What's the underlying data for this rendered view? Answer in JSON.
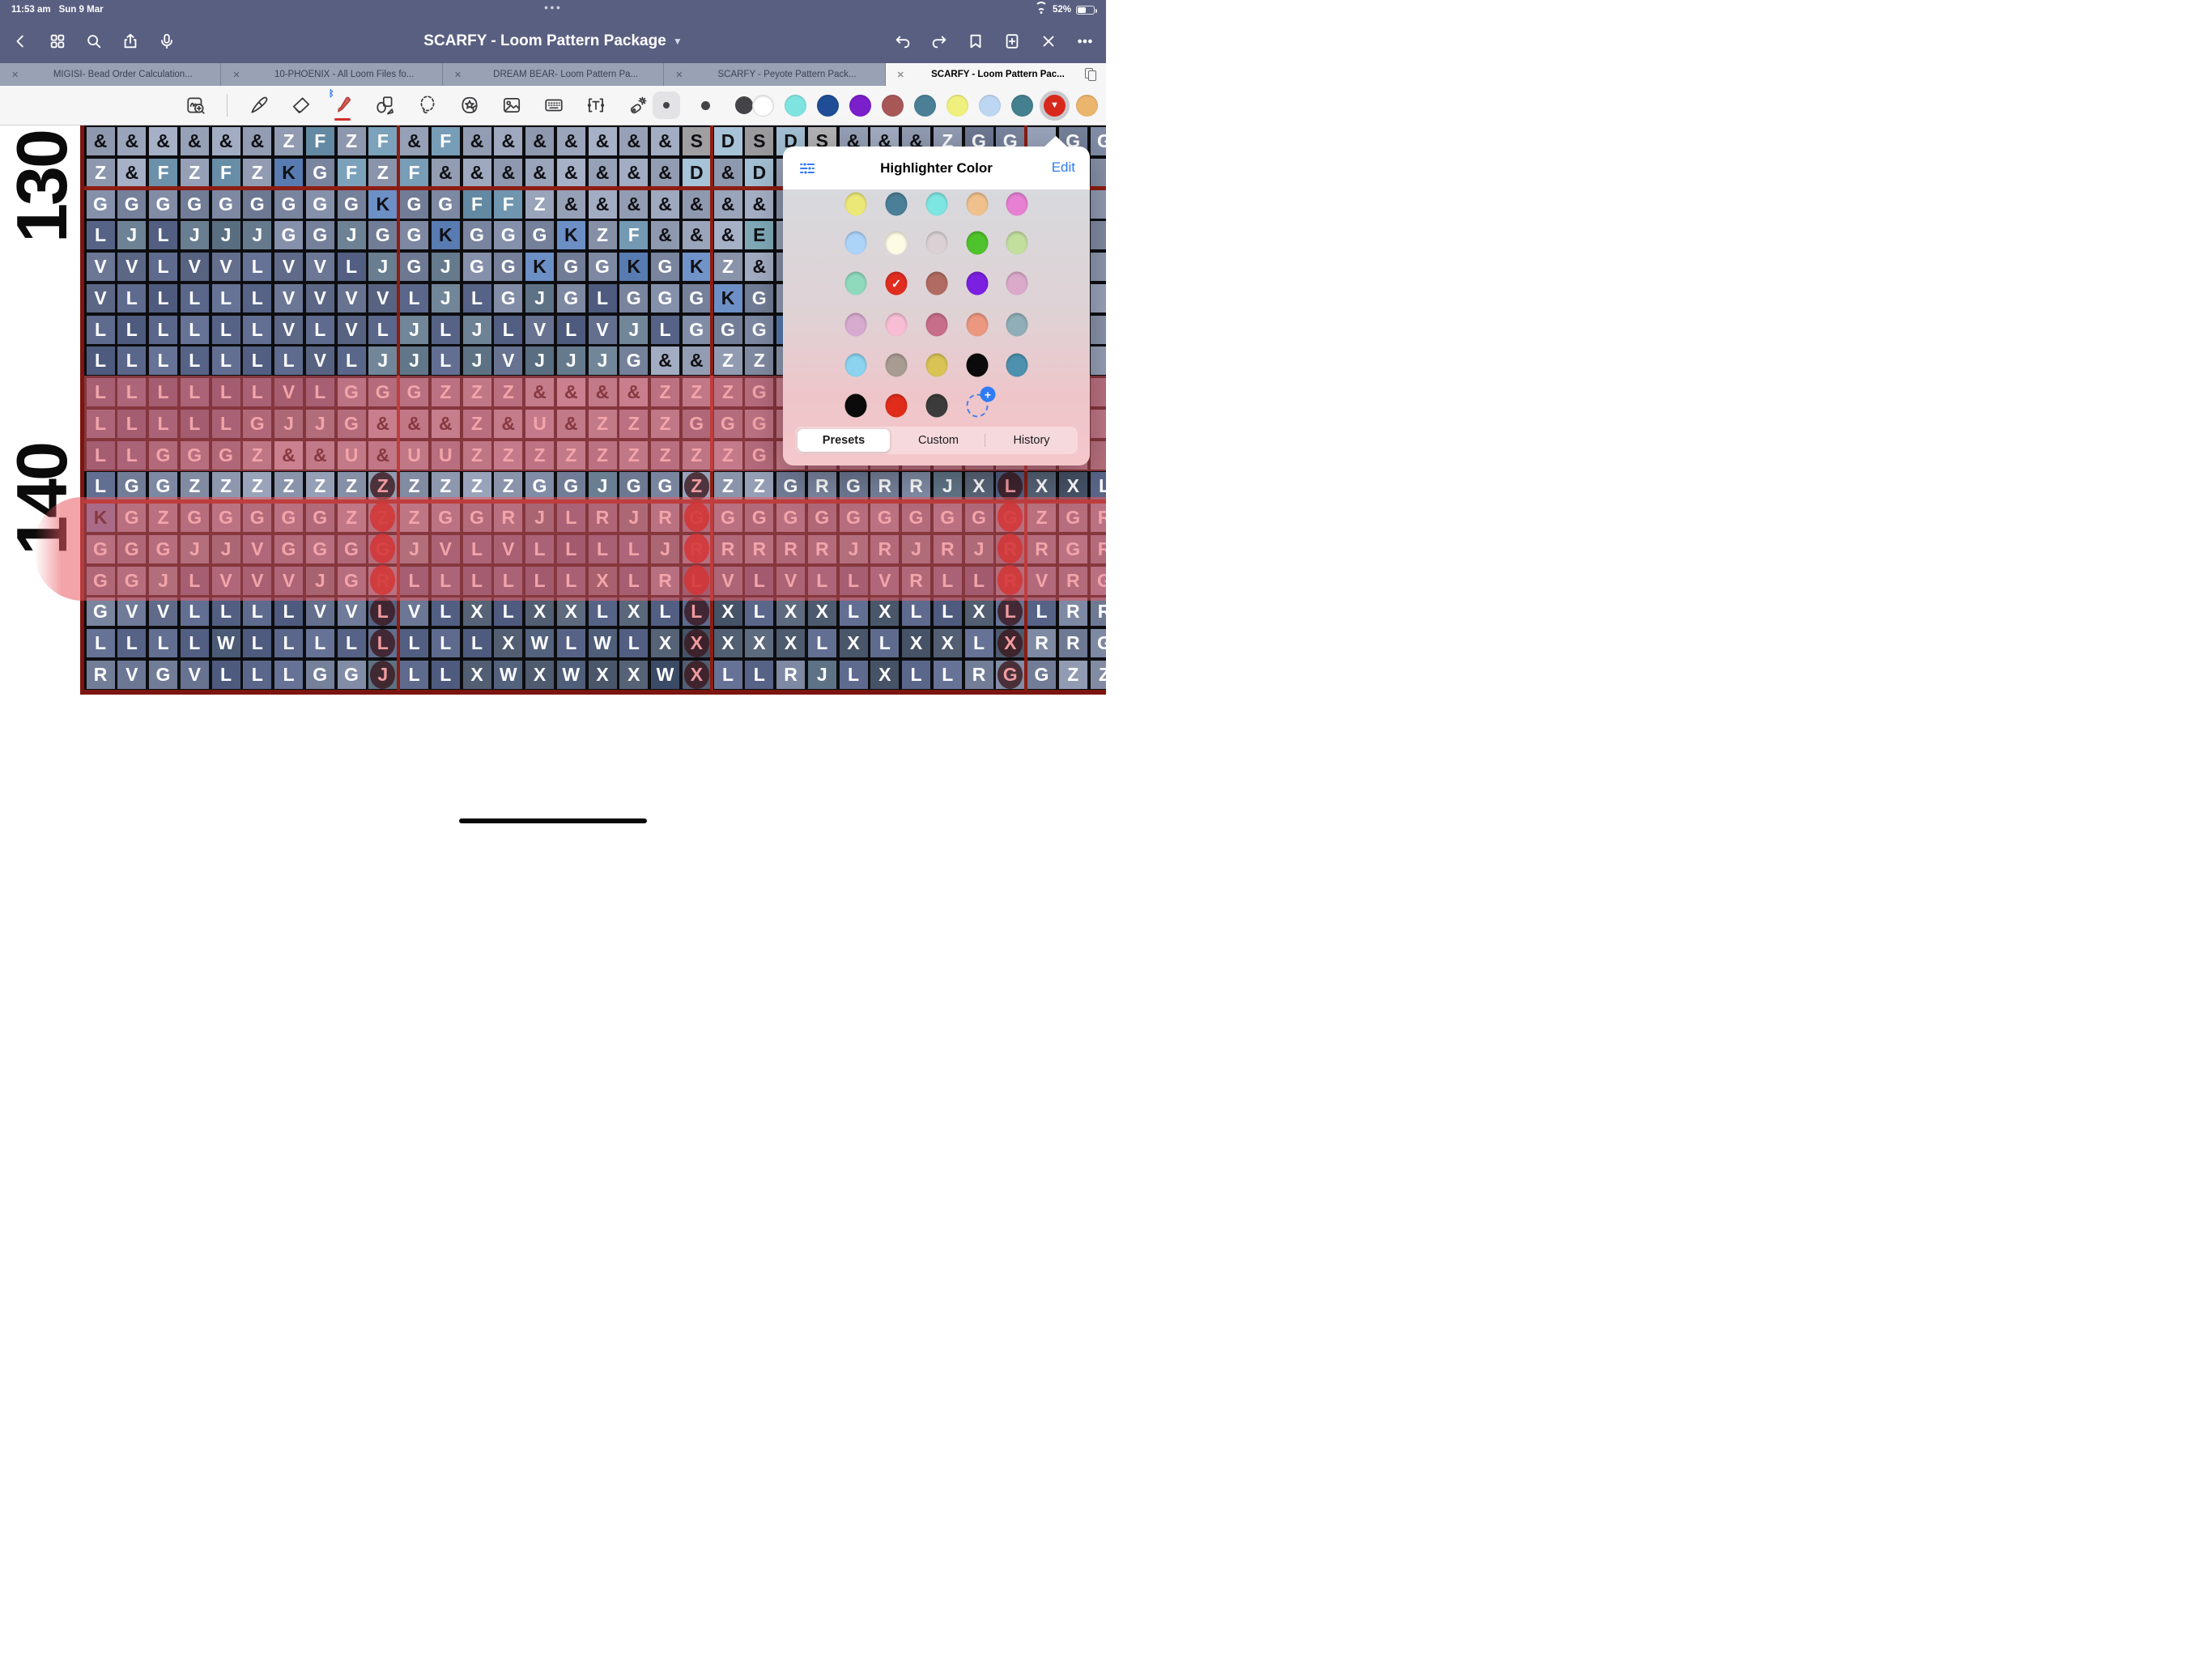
{
  "status": {
    "time": "11:53 am",
    "date": "Sun 9 Mar",
    "battery": "52%"
  },
  "nav": {
    "title": "SCARFY - Loom Pattern Package",
    "chevron": "⌄"
  },
  "tabs": [
    {
      "label": "MIGISI- Bead Order Calculation...",
      "active": false
    },
    {
      "label": "10-PHOENIX - All Loom Files fo...",
      "active": false
    },
    {
      "label": "DREAM BEAR- Loom Pattern Pa...",
      "active": false
    },
    {
      "label": "SCARFY -  Peyote Pattern Pack...",
      "active": false
    },
    {
      "label": "SCARFY - Loom Pattern Pac...",
      "active": true
    }
  ],
  "toolbar": {
    "tools": [
      "zoom-window",
      "pen",
      "eraser",
      "highlighter",
      "shapes",
      "lasso",
      "stickers",
      "image",
      "keyboard",
      "text",
      "laser-pointer"
    ],
    "selected_tool": "highlighter",
    "stroke_sizes": [
      "small",
      "medium",
      "large"
    ],
    "selected_size": "small",
    "colors": [
      "#FFFFFF",
      "#7FE3E0",
      "#1F4E96",
      "#7A1FC9",
      "#A85757",
      "#4A7F96",
      "#EFF07D",
      "#BDD7F2",
      "#45808F",
      "#D8281C",
      "#EBB56E"
    ],
    "selected_color_index": 9
  },
  "popup": {
    "title": "Highlighter Color",
    "edit_label": "Edit",
    "segments": [
      "Presets",
      "Custom",
      "History"
    ],
    "active_segment": "Presets",
    "selected_color": "#E02D20",
    "swatch_rows": [
      [
        "#ECE878",
        "#4B7E97",
        "#7EE6E2",
        "#F0C18D",
        "#E77FD3"
      ],
      [
        "#ACD4F8",
        "#FDFBE4",
        "#DBD1D4",
        "#4FC32C",
        "#C2DF9E"
      ],
      [
        "#8FD9BC",
        "#E02D20",
        "#B16B62",
        "#7B20E0",
        "#DBAACB"
      ],
      [
        "#D7ABD0",
        "#F6BDD4",
        "#C76E8B",
        "#EC9780",
        "#8FAEB8"
      ],
      [
        "#8BD3EE",
        "#A89B92",
        "#D9C355",
        "#0B0B0B",
        "#4E91AE"
      ],
      [
        "#0B0B0B",
        "#E02D1B",
        "#3B3B3B",
        "ADD"
      ]
    ],
    "selected_swatch": [
      2,
      1
    ]
  },
  "grid": {
    "row_labels": [
      "130",
      "140"
    ],
    "dot_columns": [
      10,
      20,
      30
    ],
    "dot_rows": {
      "12": "dark",
      "13": "red",
      "14": "red",
      "15": "red",
      "16": "dark",
      "17": "dark",
      "18": "dark"
    },
    "letter_styles": {
      "&": [
        "#9aa4ba",
        "#101014"
      ],
      "Z": [
        "#8d97ae",
        "#ffffff"
      ],
      "F": [
        "#6f95af",
        "#ffffff"
      ],
      "G": [
        "#79849e",
        "#ffffff"
      ],
      "L": [
        "#5a678a",
        "#ffffff"
      ],
      "J": [
        "#657a8c",
        "#ffffff"
      ],
      "V": [
        "#636f8d",
        "#ffffff"
      ],
      "K": [
        "#6487bd",
        "#101014"
      ],
      "S": [
        "#a7a7a9",
        "#101014"
      ],
      "D": [
        "#a3bfd3",
        "#101014"
      ],
      "E": [
        "#84aebc",
        "#101014"
      ],
      "U": [
        "#8d97ae",
        "#ffffff"
      ],
      "X": [
        "#525e72",
        "#ffffff"
      ],
      "W": [
        "#475671",
        "#ffffff"
      ],
      "R": [
        "#76819b",
        "#ffffff"
      ],
      "": [
        "#8e98af",
        "#8e98af"
      ]
    },
    "rows": [
      [
        "&",
        "&",
        "&",
        "&",
        "&",
        "&",
        "Z",
        "F",
        "Z",
        "F",
        "&",
        "F",
        "&",
        "&",
        "&",
        "&",
        "&",
        "&",
        "&",
        "S",
        "D",
        "S",
        "D",
        "S",
        "&",
        "&",
        "&",
        "Z",
        "G",
        "G",
        "",
        "G",
        "G"
      ],
      [
        "Z",
        "&",
        "F",
        "Z",
        "F",
        "Z",
        "K",
        "G",
        "F",
        "Z",
        "F",
        "&",
        "&",
        "&",
        "&",
        "&",
        "&",
        "&",
        "&",
        "D",
        "&",
        "D",
        "",
        "",
        "",
        "",
        "",
        "",
        "",
        "",
        "",
        "",
        ""
      ],
      [
        "G",
        "G",
        "G",
        "G",
        "G",
        "G",
        "G",
        "G",
        "G",
        "K",
        "G",
        "G",
        "F",
        "F",
        "Z",
        "&",
        "&",
        "&",
        "&",
        "&",
        "&",
        "&",
        "",
        "",
        "",
        "",
        "",
        "",
        "",
        "",
        "",
        "",
        ""
      ],
      [
        "L",
        "J",
        "L",
        "J",
        "J",
        "J",
        "G",
        "G",
        "J",
        "G",
        "G",
        "K",
        "G",
        "G",
        "G",
        "K",
        "Z",
        "F",
        "&",
        "&",
        "&",
        "E",
        "",
        "",
        "",
        "",
        "",
        "",
        "",
        "",
        "",
        "",
        ""
      ],
      [
        "V",
        "V",
        "L",
        "V",
        "V",
        "L",
        "V",
        "V",
        "L",
        "J",
        "G",
        "J",
        "G",
        "G",
        "K",
        "G",
        "G",
        "K",
        "G",
        "K",
        "Z",
        "&",
        "",
        "",
        "",
        "",
        "",
        "",
        "",
        "",
        "",
        "",
        ""
      ],
      [
        "V",
        "L",
        "L",
        "L",
        "L",
        "L",
        "V",
        "V",
        "V",
        "V",
        "L",
        "J",
        "L",
        "G",
        "J",
        "G",
        "L",
        "G",
        "G",
        "G",
        "K",
        "G",
        "",
        "",
        "",
        "",
        "",
        "",
        "",
        "",
        "",
        "",
        ""
      ],
      [
        "L",
        "L",
        "L",
        "L",
        "L",
        "L",
        "V",
        "L",
        "V",
        "L",
        "J",
        "L",
        "J",
        "L",
        "V",
        "L",
        "V",
        "J",
        "L",
        "G",
        "G",
        "G",
        "K",
        "",
        "",
        "",
        "",
        "",
        "",
        "",
        "",
        "",
        ""
      ],
      [
        "L",
        "L",
        "L",
        "L",
        "L",
        "L",
        "L",
        "V",
        "L",
        "J",
        "J",
        "L",
        "J",
        "V",
        "J",
        "J",
        "J",
        "G",
        "&",
        "&",
        "Z",
        "Z",
        "",
        "",
        "",
        "",
        "",
        "",
        "",
        "",
        "",
        "",
        ""
      ],
      [
        "L",
        "L",
        "L",
        "L",
        "L",
        "L",
        "V",
        "L",
        "G",
        "G",
        "G",
        "Z",
        "Z",
        "Z",
        "&",
        "&",
        "&",
        "&",
        "Z",
        "Z",
        "Z",
        "G",
        "",
        "",
        "",
        "",
        "",
        "",
        "",
        "",
        "",
        "",
        ""
      ],
      [
        "L",
        "L",
        "L",
        "L",
        "L",
        "G",
        "J",
        "J",
        "G",
        "&",
        "&",
        "&",
        "Z",
        "&",
        "U",
        "&",
        "Z",
        "Z",
        "Z",
        "G",
        "G",
        "G",
        "",
        "",
        "",
        "",
        "",
        "",
        "",
        "",
        "",
        "",
        ""
      ],
      [
        "L",
        "L",
        "G",
        "G",
        "G",
        "Z",
        "&",
        "&",
        "U",
        "&",
        "U",
        "U",
        "Z",
        "Z",
        "Z",
        "Z",
        "Z",
        "Z",
        "Z",
        "Z",
        "Z",
        "G",
        "",
        "",
        "",
        "",
        "",
        "",
        "",
        "",
        "",
        "",
        ""
      ],
      [
        "L",
        "G",
        "G",
        "Z",
        "Z",
        "Z",
        "Z",
        "Z",
        "Z",
        "Z",
        "Z",
        "Z",
        "Z",
        "Z",
        "G",
        "G",
        "J",
        "G",
        "G",
        "Z",
        "Z",
        "Z",
        "G",
        "R",
        "G",
        "R",
        "R",
        "J",
        "X",
        "L",
        "X",
        "X",
        "L"
      ],
      [
        "K",
        "G",
        "Z",
        "G",
        "G",
        "G",
        "G",
        "G",
        "Z",
        "Z",
        "Z",
        "G",
        "G",
        "R",
        "J",
        "L",
        "R",
        "J",
        "R",
        "G",
        "G",
        "G",
        "G",
        "G",
        "G",
        "G",
        "G",
        "G",
        "G",
        "G",
        "Z",
        "G",
        "R"
      ],
      [
        "G",
        "G",
        "G",
        "J",
        "J",
        "V",
        "G",
        "G",
        "G",
        "G",
        "J",
        "V",
        "L",
        "V",
        "L",
        "L",
        "L",
        "L",
        "J",
        "R",
        "R",
        "R",
        "R",
        "R",
        "J",
        "R",
        "J",
        "R",
        "J",
        "R",
        "R",
        "G",
        "R"
      ],
      [
        "G",
        "G",
        "J",
        "L",
        "V",
        "V",
        "V",
        "J",
        "G",
        "R",
        "L",
        "L",
        "L",
        "L",
        "L",
        "L",
        "X",
        "L",
        "R",
        "L",
        "V",
        "L",
        "V",
        "L",
        "L",
        "V",
        "R",
        "L",
        "L",
        "R",
        "V",
        "R",
        "G"
      ],
      [
        "G",
        "V",
        "V",
        "L",
        "L",
        "L",
        "L",
        "V",
        "V",
        "L",
        "V",
        "L",
        "X",
        "L",
        "X",
        "X",
        "L",
        "X",
        "L",
        "L",
        "X",
        "L",
        "X",
        "X",
        "L",
        "X",
        "L",
        "L",
        "X",
        "L",
        "L",
        "R",
        "R"
      ],
      [
        "L",
        "L",
        "L",
        "L",
        "W",
        "L",
        "L",
        "L",
        "L",
        "L",
        "L",
        "L",
        "L",
        "X",
        "W",
        "L",
        "W",
        "L",
        "X",
        "X",
        "X",
        "X",
        "X",
        "L",
        "X",
        "L",
        "X",
        "X",
        "L",
        "X",
        "R",
        "R",
        "G"
      ],
      [
        "R",
        "V",
        "G",
        "V",
        "L",
        "L",
        "L",
        "G",
        "G",
        "J",
        "L",
        "L",
        "X",
        "W",
        "X",
        "W",
        "X",
        "X",
        "W",
        "X",
        "L",
        "L",
        "R",
        "J",
        "L",
        "X",
        "L",
        "L",
        "R",
        "G",
        "G",
        "Z",
        "Z"
      ]
    ]
  }
}
